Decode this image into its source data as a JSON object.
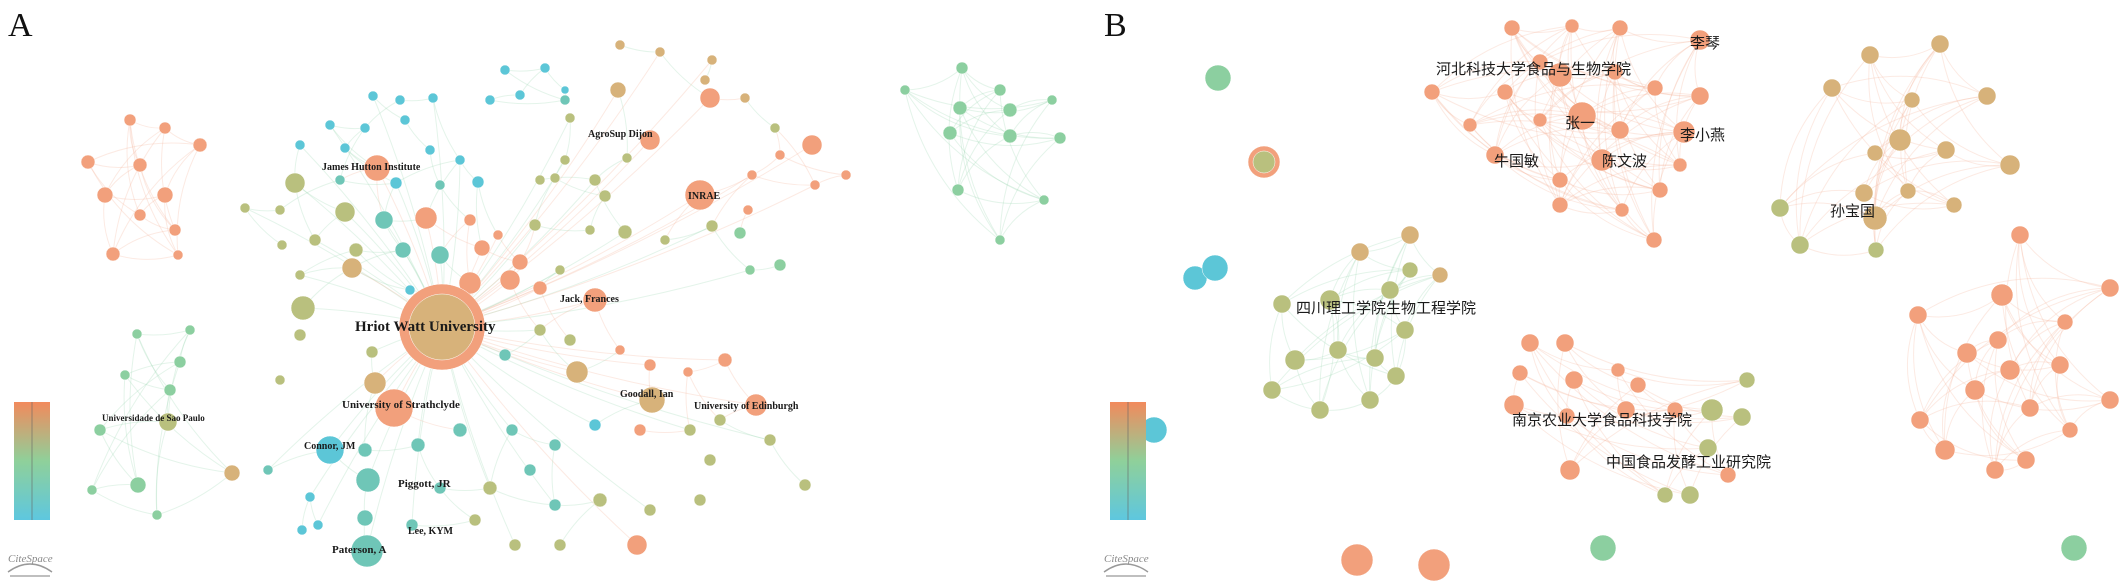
{
  "panels": {
    "A": {
      "letter": "A",
      "labels": [
        "Hriot Watt University",
        "James Hutton Institute",
        "AgroSup Dijon",
        "INRAE",
        "Jack, Frances",
        "University of Strathclyde",
        "Goodall, Ian",
        "University of Edinburgh",
        "Universidade de Sao Paulo",
        "Connor, JM",
        "Piggott, JR",
        "Lee, KYM",
        "Paterson, A"
      ],
      "logo": "CiteSpace"
    },
    "B": {
      "letter": "B",
      "labels": [
        "李琴",
        "河北科技大学食品与生物学院",
        "张一",
        "李小燕",
        "牛国敏",
        "陈文波",
        "孙宝国",
        "四川理工学院生物工程学院",
        "南京农业大学食品科技学院",
        "中国食品发酵工业研究院"
      ],
      "logo": "CiteSpace"
    }
  },
  "colors": {
    "orange": "#f2a07c",
    "tan": "#d7b27a",
    "olive": "#b9c07e",
    "green": "#8ccfa0",
    "teal": "#6fc6b7",
    "cyan": "#5cc6d7",
    "edge_orange": "#f3b59a",
    "edge_green": "#9fd8b3"
  },
  "legend": {
    "gradient_top": "#f28a5c",
    "gradient_mid": "#8fd09a",
    "gradient_bottom": "#5ec7df"
  }
}
